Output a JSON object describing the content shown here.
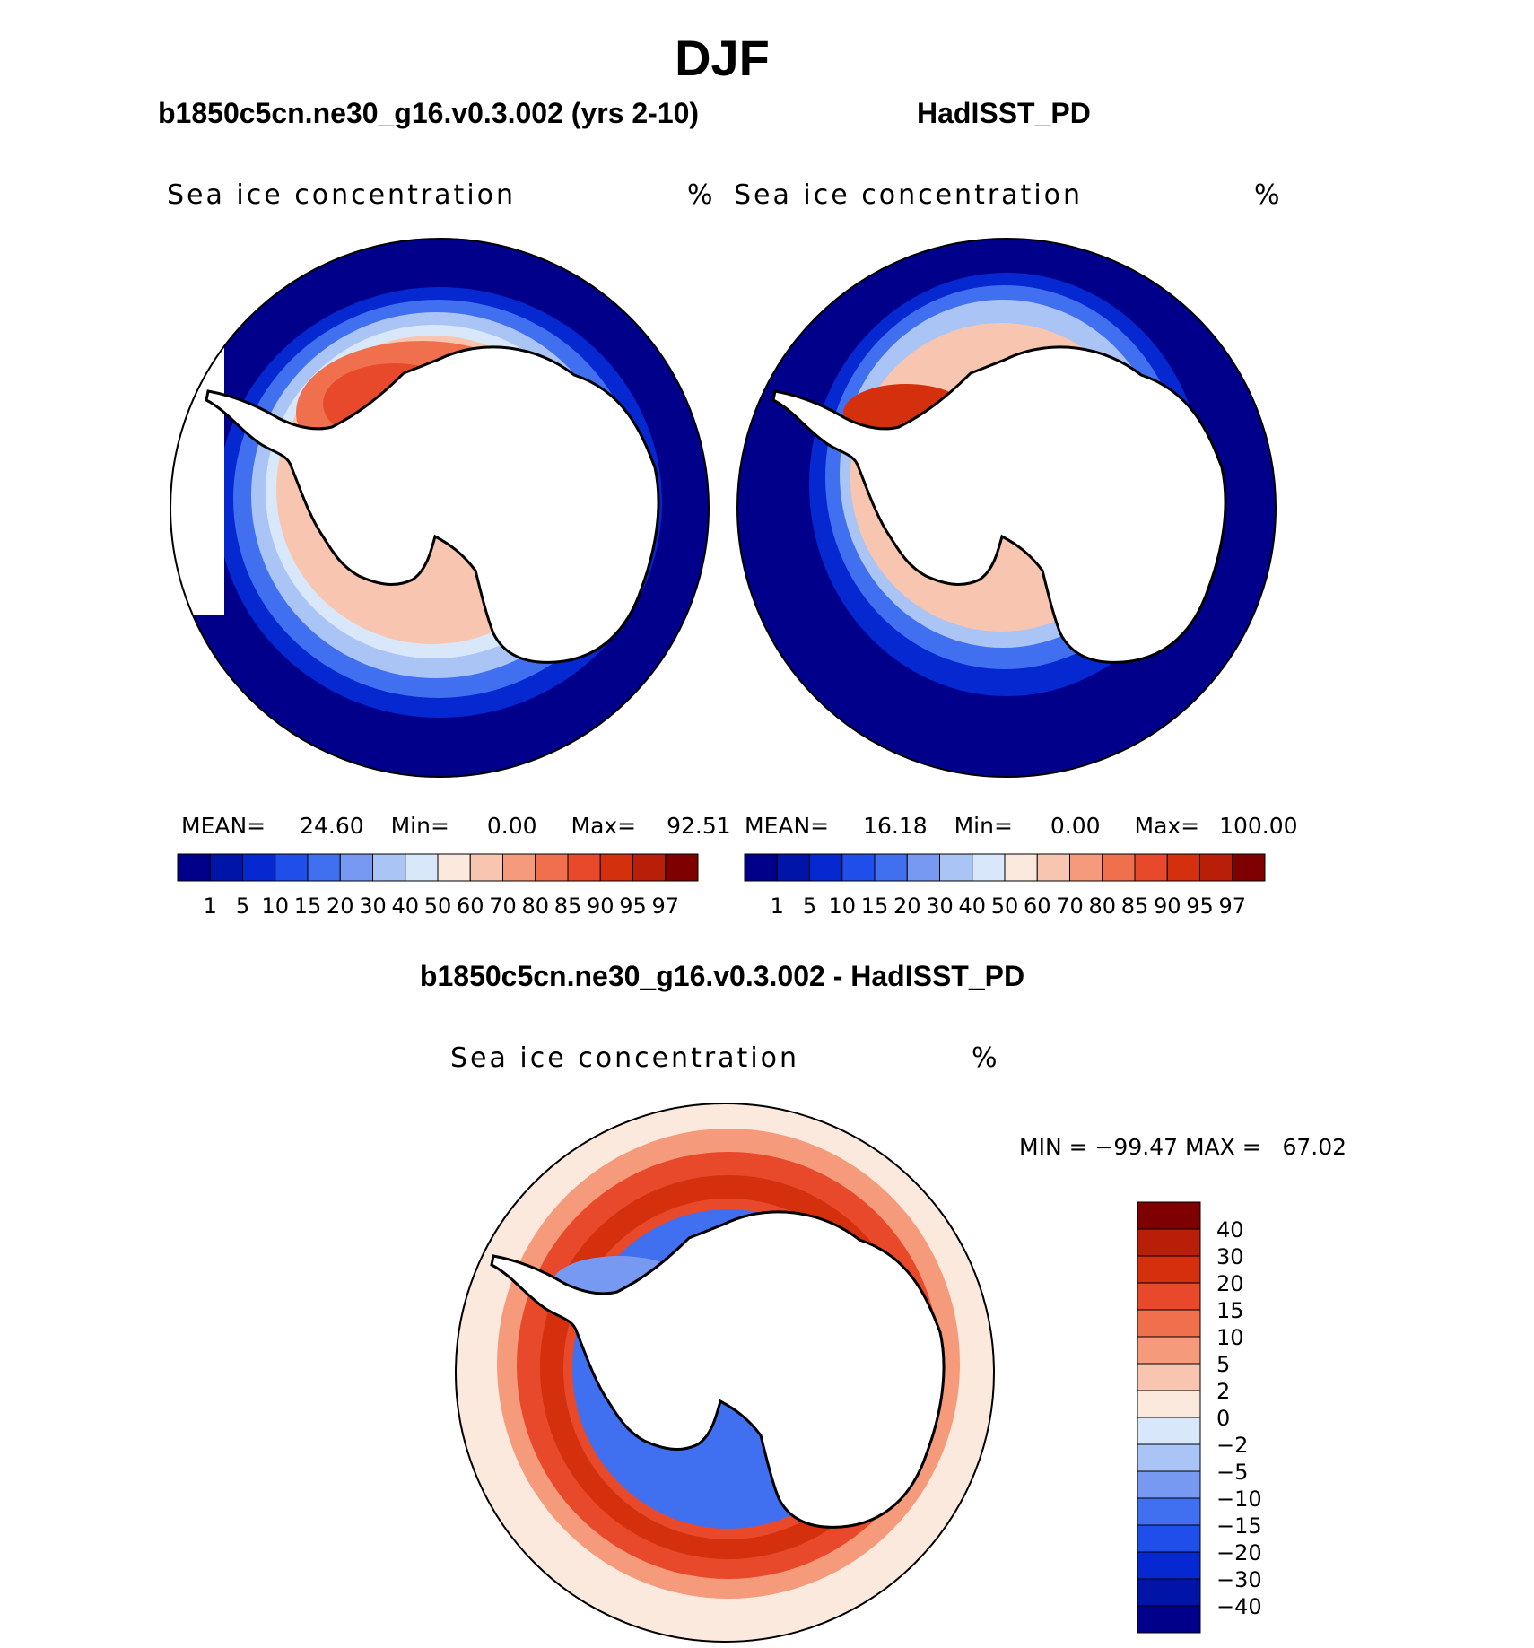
{
  "title": "DJF",
  "panels": [
    {
      "case_title": "b1850c5cn.ne30_g16.v0.3.002 (yrs 2-10)",
      "variable": "Sea ice concentration",
      "units": "%",
      "stats": {
        "mean_label": "MEAN=",
        "mean": "24.60",
        "min_label": "Min=",
        "min": "0.00",
        "max_label": "Max=",
        "max": "92.51"
      }
    },
    {
      "case_title": "HadISST_PD",
      "variable": "Sea ice concentration",
      "units": "%",
      "stats": {
        "mean_label": "MEAN=",
        "mean": "16.18",
        "min_label": "Min=",
        "min": "0.00",
        "max_label": "Max=",
        "max": "100.00"
      }
    },
    {
      "case_title": "b1850c5cn.ne30_g16.v0.3.002 - HadISST_PD",
      "variable": "Sea ice concentration",
      "units": "%",
      "minmax": "MIN = −99.47 MAX =   67.02"
    }
  ],
  "chart_data": [
    {
      "type": "heatmap",
      "projection": "south polar stereographic",
      "title": "b1850c5cn.ne30_g16.v0.3.002 (yrs 2-10)",
      "variable": "Sea ice concentration",
      "units": "%",
      "mean": 24.6,
      "min": 0.0,
      "max": 92.51,
      "levels": [
        1,
        5,
        10,
        15,
        20,
        30,
        40,
        50,
        60,
        70,
        80,
        85,
        90,
        95,
        97
      ],
      "colors": [
        "#00008b",
        "#0015a8",
        "#0628d0",
        "#1f4eeb",
        "#4070f0",
        "#7899f2",
        "#a9c4f5",
        "#d8e8fa",
        "#fbe9de",
        "#f8c6b0",
        "#f59a7a",
        "#f06f4c",
        "#e8492a",
        "#d4300e",
        "#b81e08",
        "#7f0000"
      ],
      "legend": "horizontal colorbar below plot"
    },
    {
      "type": "heatmap",
      "projection": "south polar stereographic",
      "title": "HadISST_PD",
      "variable": "Sea ice concentration",
      "units": "%",
      "mean": 16.18,
      "min": 0.0,
      "max": 100.0,
      "levels": [
        1,
        5,
        10,
        15,
        20,
        30,
        40,
        50,
        60,
        70,
        80,
        85,
        90,
        95,
        97
      ],
      "colors": [
        "#00008b",
        "#0015a8",
        "#0628d0",
        "#1f4eeb",
        "#4070f0",
        "#7899f2",
        "#a9c4f5",
        "#d8e8fa",
        "#fbe9de",
        "#f8c6b0",
        "#f59a7a",
        "#f06f4c",
        "#e8492a",
        "#d4300e",
        "#b81e08",
        "#7f0000"
      ],
      "legend": "horizontal colorbar below plot"
    },
    {
      "type": "heatmap",
      "projection": "south polar stereographic",
      "title": "b1850c5cn.ne30_g16.v0.3.002 - HadISST_PD",
      "variable": "Sea ice concentration",
      "units": "%",
      "min": -99.47,
      "max": 67.02,
      "levels": [
        40,
        30,
        20,
        15,
        10,
        5,
        2,
        0,
        -2,
        -5,
        -10,
        -15,
        -20,
        -30,
        -40
      ],
      "level_labels": [
        "40",
        "30",
        "20",
        "15",
        "10",
        "5",
        "2",
        "0",
        "−2",
        "−5",
        "−10",
        "−15",
        "−20",
        "−30",
        "−40"
      ],
      "colors": [
        "#7f0000",
        "#b81e08",
        "#d4300e",
        "#e8492a",
        "#f06f4c",
        "#f59a7a",
        "#f8c6b0",
        "#fbe9de",
        "#d8e8fa",
        "#a9c4f5",
        "#7899f2",
        "#4070f0",
        "#1f4eeb",
        "#0628d0",
        "#0015a8",
        "#00008b"
      ],
      "legend": "vertical colorbar right of plot"
    }
  ]
}
